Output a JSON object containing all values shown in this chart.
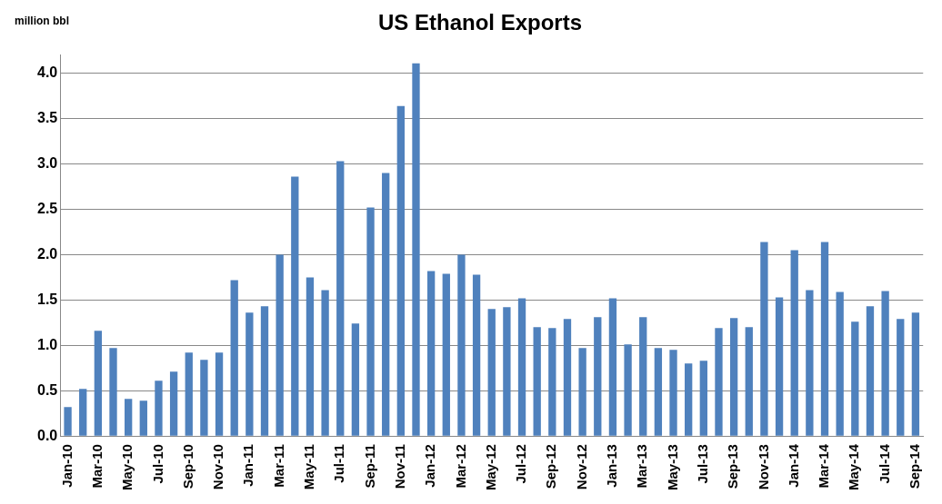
{
  "chart_data": {
    "type": "bar",
    "title": "US Ethanol Exports",
    "ylabel": "million bbl",
    "categories": [
      "Jan-10",
      null,
      "Mar-10",
      null,
      "May-10",
      null,
      "Jul-10",
      null,
      "Sep-10",
      null,
      "Nov-10",
      null,
      "Jan-11",
      null,
      "Mar-11",
      null,
      "May-11",
      null,
      "Jul-11",
      null,
      "Sep-11",
      null,
      "Nov-11",
      null,
      "Jan-12",
      null,
      "Mar-12",
      null,
      "May-12",
      null,
      "Jul-12",
      null,
      "Sep-12",
      null,
      "Nov-12",
      null,
      "Jan-13",
      null,
      "Mar-13",
      null,
      "May-13",
      null,
      "Jul-13",
      null,
      "Sep-13",
      null,
      "Nov-13",
      null,
      "Jan-14",
      null,
      "Mar-14",
      null,
      "May-14",
      null,
      "Jul-14",
      null,
      "Sep-14"
    ],
    "values": [
      0.32,
      0.52,
      1.16,
      0.97,
      0.41,
      0.39,
      0.61,
      0.71,
      0.92,
      0.84,
      0.92,
      1.72,
      1.36,
      1.43,
      2.0,
      2.86,
      1.75,
      1.61,
      3.03,
      1.24,
      2.52,
      2.9,
      3.64,
      4.11,
      1.82,
      1.79,
      2.0,
      1.78,
      1.4,
      1.42,
      1.52,
      1.2,
      1.19,
      1.29,
      0.97,
      1.31,
      1.52,
      1.01,
      1.31,
      0.97,
      0.95,
      0.8,
      0.83,
      1.19,
      1.3,
      1.2,
      2.14,
      1.53,
      2.05,
      1.61,
      2.14,
      1.59,
      1.26,
      1.43,
      1.6,
      1.29,
      1.36
    ],
    "color": "#4f81bd",
    "ylim": [
      0,
      4.2
    ],
    "yticks": [
      {
        "value": 0,
        "label": "0.0"
      },
      {
        "value": 0.5,
        "label": "0.5"
      },
      {
        "value": 1,
        "label": "1.0"
      },
      {
        "value": 1.5,
        "label": "1.5"
      },
      {
        "value": 2,
        "label": "2.0"
      },
      {
        "value": 2.5,
        "label": "2.5"
      },
      {
        "value": 3,
        "label": "3.0"
      },
      {
        "value": 3.5,
        "label": "3.5"
      },
      {
        "value": 4,
        "label": "4.0"
      }
    ],
    "grid": "y"
  }
}
